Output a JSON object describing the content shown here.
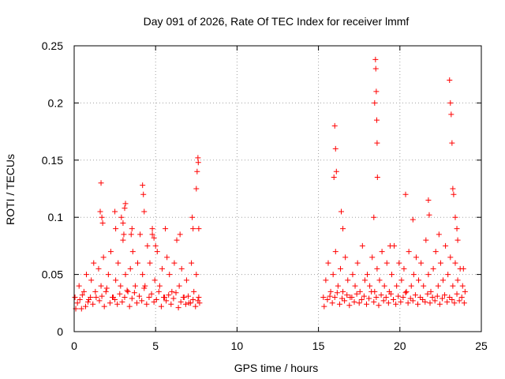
{
  "chart_data": {
    "type": "scatter",
    "title": "Day 091 of 2026, Rate Of TEC Index for receiver lmmf",
    "xlabel": "GPS time / hours",
    "ylabel": "ROTI / TECUs",
    "xlim": [
      0,
      25
    ],
    "ylim": [
      0,
      0.25
    ],
    "x_ticks": [
      0,
      5,
      10,
      15,
      20,
      25
    ],
    "x_tick_labels": [
      "0",
      "5",
      "10",
      "15",
      "20",
      "25"
    ],
    "y_ticks": [
      0,
      0.05,
      0.1,
      0.15,
      0.2,
      0.25
    ],
    "y_tick_labels": [
      "0",
      "0.05",
      "0.1",
      "0.15",
      "0.2",
      "0.25"
    ],
    "grid": true,
    "marker": "+",
    "color": "#ff0000",
    "series": [
      {
        "name": "ROTI",
        "x": [
          0.05,
          0.2,
          0.3,
          0.45,
          0.6,
          0.75,
          0.9,
          1.05,
          1.2,
          1.35,
          1.5,
          1.65,
          1.8,
          1.95,
          2.1,
          2.25,
          2.4,
          2.55,
          2.7,
          2.85,
          3.0,
          3.15,
          3.3,
          3.45,
          3.6,
          3.75,
          3.9,
          4.05,
          4.2,
          4.35,
          4.5,
          4.65,
          4.8,
          4.95,
          5.1,
          5.25,
          5.4,
          5.55,
          5.7,
          5.85,
          6.0,
          6.15,
          6.3,
          6.45,
          6.6,
          6.75,
          6.9,
          7.05,
          7.2,
          7.35,
          7.5,
          7.65,
          7.7,
          0.1,
          0.35,
          0.5,
          0.7,
          0.85,
          1.0,
          1.15,
          1.3,
          1.55,
          1.7,
          1.85,
          2.0,
          2.2,
          2.35,
          2.5,
          2.65,
          2.8,
          2.95,
          3.1,
          3.25,
          3.4,
          3.55,
          3.7,
          3.85,
          4.0,
          4.15,
          4.3,
          4.45,
          4.6,
          4.75,
          4.9,
          5.05,
          5.2,
          5.35,
          5.5,
          5.65,
          5.8,
          5.95,
          6.1,
          6.25,
          6.4,
          6.55,
          6.7,
          6.85,
          7.0,
          7.15,
          7.3,
          7.45,
          7.6,
          1.6,
          1.65,
          1.7,
          1.75,
          2.5,
          2.55,
          2.9,
          3.0,
          3.05,
          3.1,
          3.15,
          3.5,
          3.55,
          4.2,
          4.25,
          4.3,
          4.8,
          4.9,
          5.0,
          5.6,
          6.5,
          7.25,
          7.3,
          7.5,
          7.55,
          7.6,
          7.62,
          7.65,
          15.3,
          15.45,
          15.6,
          15.75,
          15.9,
          16.05,
          16.2,
          16.35,
          16.5,
          16.65,
          16.8,
          16.95,
          17.1,
          17.25,
          17.4,
          17.55,
          17.7,
          17.85,
          18.0,
          18.15,
          18.3,
          18.45,
          18.6,
          18.75,
          18.9,
          19.05,
          19.2,
          19.35,
          19.5,
          19.65,
          19.8,
          19.95,
          20.1,
          20.25,
          20.4,
          20.55,
          20.7,
          20.85,
          21.0,
          21.15,
          21.3,
          21.45,
          21.6,
          21.75,
          21.9,
          22.05,
          22.2,
          22.35,
          22.5,
          22.65,
          22.8,
          22.95,
          23.1,
          23.25,
          23.4,
          23.55,
          23.7,
          23.85,
          24.0,
          15.35,
          15.55,
          15.7,
          15.85,
          16.0,
          16.15,
          16.3,
          16.45,
          16.6,
          16.75,
          16.9,
          17.05,
          17.2,
          17.35,
          17.5,
          17.65,
          17.8,
          17.95,
          18.1,
          18.25,
          18.4,
          18.55,
          18.7,
          18.85,
          19.0,
          19.15,
          19.3,
          19.45,
          19.6,
          19.75,
          19.9,
          20.05,
          20.2,
          20.35,
          20.5,
          20.65,
          20.8,
          20.95,
          21.1,
          21.25,
          21.4,
          21.55,
          21.7,
          21.85,
          22.0,
          22.15,
          22.3,
          22.45,
          22.6,
          22.75,
          22.9,
          23.05,
          23.2,
          23.35,
          23.5,
          23.65,
          23.8,
          23.95,
          15.95,
          16.0,
          16.05,
          16.1,
          16.4,
          16.5,
          18.4,
          18.45,
          18.5,
          18.52,
          18.55,
          18.58,
          18.6,
          18.62,
          19.4,
          20.35,
          20.8,
          21.75,
          21.8,
          22.4,
          23.05,
          23.1,
          23.15,
          23.2,
          23.25,
          23.3,
          23.4,
          23.5,
          23.55,
          23.9
        ],
        "y": [
          0.03,
          0.025,
          0.04,
          0.02,
          0.035,
          0.05,
          0.028,
          0.045,
          0.06,
          0.03,
          0.055,
          0.04,
          0.065,
          0.035,
          0.05,
          0.07,
          0.03,
          0.045,
          0.06,
          0.04,
          0.08,
          0.05,
          0.035,
          0.055,
          0.07,
          0.04,
          0.06,
          0.085,
          0.05,
          0.04,
          0.075,
          0.06,
          0.085,
          0.045,
          0.07,
          0.04,
          0.055,
          0.03,
          0.065,
          0.05,
          0.035,
          0.06,
          0.08,
          0.04,
          0.055,
          0.03,
          0.045,
          0.025,
          0.06,
          0.035,
          0.05,
          0.03,
          0.025,
          0.02,
          0.028,
          0.032,
          0.022,
          0.026,
          0.03,
          0.024,
          0.035,
          0.027,
          0.031,
          0.022,
          0.038,
          0.025,
          0.03,
          0.028,
          0.024,
          0.033,
          0.026,
          0.03,
          0.036,
          0.022,
          0.029,
          0.034,
          0.025,
          0.031,
          0.027,
          0.038,
          0.024,
          0.03,
          0.033,
          0.026,
          0.028,
          0.035,
          0.022,
          0.03,
          0.027,
          0.032,
          0.024,
          0.029,
          0.034,
          0.021,
          0.026,
          0.03,
          0.024,
          0.031,
          0.025,
          0.028,
          0.022,
          0.027,
          0.105,
          0.13,
          0.1,
          0.095,
          0.105,
          0.09,
          0.1,
          0.095,
          0.085,
          0.108,
          0.112,
          0.085,
          0.09,
          0.128,
          0.12,
          0.105,
          0.09,
          0.082,
          0.075,
          0.09,
          0.085,
          0.1,
          0.09,
          0.125,
          0.14,
          0.152,
          0.148,
          0.09,
          0.03,
          0.045,
          0.06,
          0.035,
          0.05,
          0.07,
          0.04,
          0.055,
          0.035,
          0.065,
          0.045,
          0.03,
          0.05,
          0.04,
          0.06,
          0.035,
          0.075,
          0.045,
          0.05,
          0.04,
          0.065,
          0.035,
          0.055,
          0.045,
          0.07,
          0.04,
          0.06,
          0.035,
          0.05,
          0.075,
          0.04,
          0.06,
          0.045,
          0.055,
          0.035,
          0.07,
          0.04,
          0.05,
          0.065,
          0.045,
          0.06,
          0.04,
          0.08,
          0.05,
          0.035,
          0.055,
          0.07,
          0.04,
          0.06,
          0.045,
          0.075,
          0.05,
          0.065,
          0.04,
          0.06,
          0.045,
          0.055,
          0.04,
          0.035,
          0.022,
          0.028,
          0.031,
          0.025,
          0.03,
          0.034,
          0.024,
          0.029,
          0.027,
          0.032,
          0.023,
          0.03,
          0.026,
          0.033,
          0.025,
          0.028,
          0.031,
          0.024,
          0.029,
          0.035,
          0.026,
          0.03,
          0.023,
          0.032,
          0.027,
          0.03,
          0.025,
          0.033,
          0.028,
          0.024,
          0.031,
          0.026,
          0.03,
          0.034,
          0.025,
          0.029,
          0.027,
          0.032,
          0.024,
          0.03,
          0.028,
          0.026,
          0.033,
          0.025,
          0.03,
          0.027,
          0.031,
          0.024,
          0.029,
          0.032,
          0.026,
          0.03,
          0.028,
          0.025,
          0.033,
          0.027,
          0.03,
          0.025,
          0.135,
          0.18,
          0.16,
          0.14,
          0.105,
          0.09,
          0.1,
          0.2,
          0.238,
          0.23,
          0.21,
          0.185,
          0.165,
          0.135,
          0.075,
          0.12,
          0.098,
          0.115,
          0.102,
          0.085,
          0.22,
          0.2,
          0.19,
          0.165,
          0.125,
          0.12,
          0.1,
          0.09,
          0.08,
          0.055
        ]
      }
    ]
  }
}
